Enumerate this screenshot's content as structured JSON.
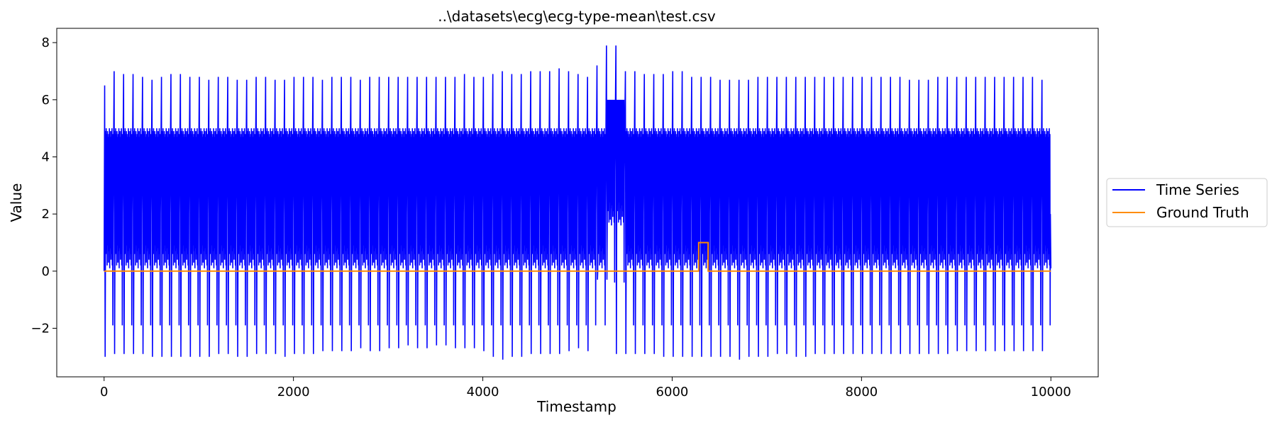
{
  "chart_data": {
    "type": "line",
    "title": "..\\datasets\\ecg\\ecg-type-mean\\test.csv",
    "xlabel": "Timestamp",
    "ylabel": "Value",
    "xlim": [
      -500,
      10500
    ],
    "ylim": [
      -3.7,
      8.5
    ],
    "xticks": [
      0,
      2000,
      4000,
      6000,
      8000,
      10000
    ],
    "xtick_labels": [
      "0",
      "2000",
      "4000",
      "6000",
      "8000",
      "10000"
    ],
    "yticks": [
      -2,
      0,
      2,
      4,
      6,
      8
    ],
    "ytick_labels": [
      "−2",
      "0",
      "2",
      "4",
      "6",
      "8"
    ],
    "grid": false,
    "legend_position": "center-right, outside plot",
    "series": [
      {
        "name": "Time Series",
        "color": "#0000ff",
        "description_values": {
          "x_start": 0,
          "x_end": 10000,
          "beat_peaks": [
            6.5,
            7.0,
            6.9,
            6.9,
            6.8,
            6.7,
            6.8,
            6.9,
            6.9,
            6.8,
            6.8,
            6.7,
            6.8,
            6.8,
            6.7,
            6.7,
            6.8,
            6.8,
            6.7,
            6.7,
            6.8,
            6.8,
            6.8,
            6.7,
            6.8,
            6.8,
            6.8,
            6.7,
            6.8,
            6.8,
            6.8,
            6.8,
            6.8,
            6.8,
            6.8,
            6.8,
            6.8,
            6.8,
            6.9,
            6.8,
            6.8,
            6.9,
            7.0,
            6.9,
            6.9,
            7.0,
            7.0,
            7.0,
            7.1,
            7.0,
            6.9,
            6.8,
            7.2,
            7.9,
            7.9,
            7.0,
            7.0,
            6.9,
            6.9,
            6.9,
            7.0,
            7.0,
            6.8,
            6.8,
            6.8,
            6.7,
            6.7,
            6.7,
            6.7,
            6.8,
            6.8,
            6.8,
            6.8,
            6.8,
            6.8,
            6.8,
            6.8,
            6.8,
            6.8,
            6.8,
            6.8,
            6.8,
            6.8,
            6.8,
            6.8,
            6.7,
            6.7,
            6.7,
            6.8,
            6.8,
            6.8,
            6.8,
            6.8,
            6.8,
            6.8,
            6.8,
            6.8,
            6.8,
            6.8,
            6.7
          ],
          "beat_troughs": [
            -3.0,
            -2.9,
            -2.9,
            -2.9,
            -2.9,
            -3.0,
            -3.0,
            -3.0,
            -3.0,
            -3.0,
            -3.0,
            -3.0,
            -2.9,
            -2.9,
            -3.0,
            -3.0,
            -2.9,
            -2.9,
            -2.9,
            -3.0,
            -2.9,
            -2.9,
            -2.9,
            -2.8,
            -2.8,
            -2.8,
            -2.8,
            -2.7,
            -2.8,
            -2.8,
            -2.7,
            -2.7,
            -2.6,
            -2.7,
            -2.7,
            -2.6,
            -2.6,
            -2.7,
            -2.7,
            -2.7,
            -2.8,
            -3.0,
            -3.1,
            -3.0,
            -3.0,
            -2.9,
            -2.9,
            -2.9,
            -2.9,
            -2.8,
            -2.7,
            -2.8,
            -0.3,
            -0.3,
            -2.9,
            -2.9,
            -2.9,
            -2.9,
            -2.9,
            -3.0,
            -3.0,
            -3.0,
            -3.0,
            -3.0,
            -3.0,
            -3.0,
            -3.0,
            -3.1,
            -3.0,
            -3.0,
            -3.0,
            -2.9,
            -2.9,
            -3.0,
            -3.0,
            -2.9,
            -2.9,
            -2.9,
            -2.9,
            -2.9,
            -2.9,
            -2.9,
            -2.9,
            -2.9,
            -2.9,
            -2.9,
            -2.9,
            -2.9,
            -2.9,
            -2.9,
            -2.8,
            -2.8,
            -2.8,
            -2.8,
            -2.8,
            -2.8,
            -2.8,
            -2.8,
            -2.8,
            -2.8
          ]
        }
      },
      {
        "name": "Ground Truth",
        "color": "#ff8c00",
        "x": [
          0,
          6280,
          6280,
          6380,
          6380,
          10000
        ],
        "y": [
          0,
          0,
          1,
          1,
          0,
          0
        ]
      }
    ]
  }
}
